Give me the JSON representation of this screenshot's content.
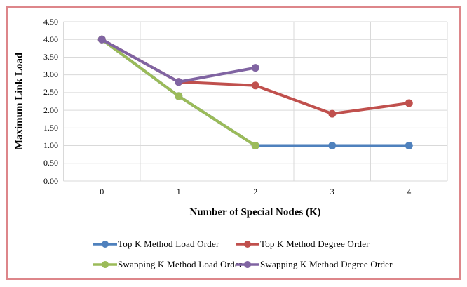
{
  "figure": {
    "frame_color": "#dd868a",
    "background": "#ffffff"
  },
  "chart_data": {
    "type": "line",
    "title": "",
    "xlabel": "Number of Special Nodes (K)",
    "ylabel": "Maximum Link Load",
    "categories": [
      0,
      1,
      2,
      3,
      4
    ],
    "x_tick_labels": [
      "0",
      "1",
      "2",
      "3",
      "4"
    ],
    "y_tick_labels": [
      "0.00",
      "0.50",
      "1.00",
      "1.50",
      "2.00",
      "2.50",
      "3.00",
      "3.50",
      "4.00",
      "4.50"
    ],
    "ylim": [
      0,
      4.5
    ],
    "grid": true,
    "grid_color": "#d9d9d9",
    "legend_position": "bottom",
    "series": [
      {
        "name": "Top K Method Load Order",
        "color": "#4F81BD",
        "values": [
          4.0,
          2.4,
          1.0,
          1.0,
          1.0
        ]
      },
      {
        "name": "Top K Method Degree Order",
        "color": "#C0504D",
        "values": [
          4.0,
          2.8,
          2.7,
          1.9,
          2.2
        ]
      },
      {
        "name": "Swapping K Method Load Order",
        "color": "#9BBB59",
        "values": [
          4.0,
          2.4,
          1.0,
          null,
          null
        ]
      },
      {
        "name": "Swapping K Method Degree Order",
        "color": "#8064A2",
        "values": [
          4.0,
          2.8,
          3.2,
          null,
          null
        ]
      }
    ]
  }
}
